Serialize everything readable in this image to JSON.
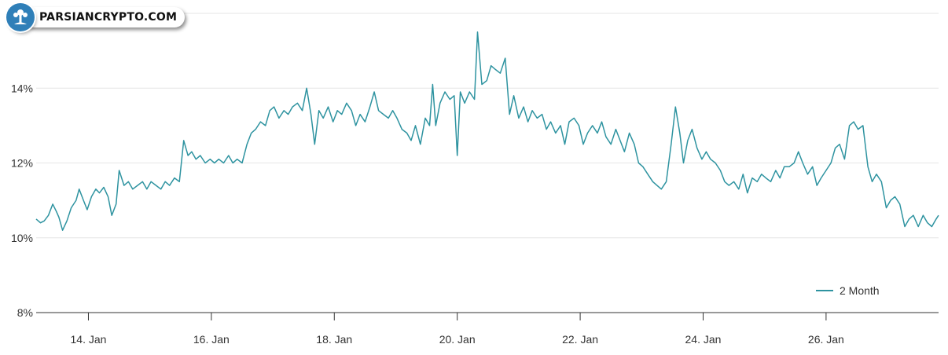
{
  "watermark": {
    "text": "PARSIANCRYPTO.COM",
    "icon": "tree-logo-icon"
  },
  "chart_data": {
    "type": "line",
    "title": "",
    "xlabel": "",
    "ylabel": "",
    "ylim": [
      8,
      16
    ],
    "yticks": [
      "8%",
      "10%",
      "12%",
      "14%"
    ],
    "xlim": [
      13.15,
      27.83
    ],
    "xticks": [
      {
        "x": 14,
        "label": "14. Jan"
      },
      {
        "x": 16,
        "label": "16. Jan"
      },
      {
        "x": 18,
        "label": "18. Jan"
      },
      {
        "x": 20,
        "label": "20. Jan"
      },
      {
        "x": 22,
        "label": "22. Jan"
      },
      {
        "x": 24,
        "label": "24. Jan"
      },
      {
        "x": 26,
        "label": "26. Jan"
      }
    ],
    "grid": true,
    "legend": "bottom-right",
    "color": "#2e93a0",
    "series": [
      {
        "name": "2 Month",
        "points": [
          [
            13.15,
            10.5
          ],
          [
            13.22,
            10.4
          ],
          [
            13.28,
            10.45
          ],
          [
            13.35,
            10.6
          ],
          [
            13.42,
            10.9
          ],
          [
            13.48,
            10.7
          ],
          [
            13.52,
            10.55
          ],
          [
            13.58,
            10.2
          ],
          [
            13.65,
            10.45
          ],
          [
            13.72,
            10.8
          ],
          [
            13.8,
            11.0
          ],
          [
            13.85,
            11.3
          ],
          [
            13.92,
            11.0
          ],
          [
            13.98,
            10.75
          ],
          [
            14.05,
            11.1
          ],
          [
            14.12,
            11.3
          ],
          [
            14.18,
            11.2
          ],
          [
            14.25,
            11.35
          ],
          [
            14.32,
            11.1
          ],
          [
            14.38,
            10.6
          ],
          [
            14.45,
            10.9
          ],
          [
            14.5,
            11.8
          ],
          [
            14.58,
            11.4
          ],
          [
            14.65,
            11.5
          ],
          [
            14.72,
            11.3
          ],
          [
            14.8,
            11.4
          ],
          [
            14.88,
            11.5
          ],
          [
            14.95,
            11.3
          ],
          [
            15.02,
            11.5
          ],
          [
            15.1,
            11.4
          ],
          [
            15.18,
            11.3
          ],
          [
            15.25,
            11.5
          ],
          [
            15.32,
            11.4
          ],
          [
            15.4,
            11.6
          ],
          [
            15.48,
            11.5
          ],
          [
            15.55,
            12.6
          ],
          [
            15.62,
            12.2
          ],
          [
            15.68,
            12.3
          ],
          [
            15.75,
            12.1
          ],
          [
            15.82,
            12.2
          ],
          [
            15.9,
            12.0
          ],
          [
            15.98,
            12.1
          ],
          [
            16.05,
            12.0
          ],
          [
            16.12,
            12.1
          ],
          [
            16.2,
            12.0
          ],
          [
            16.28,
            12.2
          ],
          [
            16.35,
            12.0
          ],
          [
            16.42,
            12.1
          ],
          [
            16.5,
            12.0
          ],
          [
            16.58,
            12.5
          ],
          [
            16.65,
            12.8
          ],
          [
            16.72,
            12.9
          ],
          [
            16.8,
            13.1
          ],
          [
            16.88,
            13.0
          ],
          [
            16.95,
            13.4
          ],
          [
            17.02,
            13.5
          ],
          [
            17.1,
            13.2
          ],
          [
            17.18,
            13.4
          ],
          [
            17.25,
            13.3
          ],
          [
            17.32,
            13.5
          ],
          [
            17.4,
            13.6
          ],
          [
            17.48,
            13.4
          ],
          [
            17.55,
            14.0
          ],
          [
            17.62,
            13.3
          ],
          [
            17.68,
            12.5
          ],
          [
            17.75,
            13.4
          ],
          [
            17.82,
            13.2
          ],
          [
            17.9,
            13.5
          ],
          [
            17.98,
            13.1
          ],
          [
            18.05,
            13.4
          ],
          [
            18.12,
            13.3
          ],
          [
            18.2,
            13.6
          ],
          [
            18.28,
            13.4
          ],
          [
            18.35,
            13.0
          ],
          [
            18.42,
            13.3
          ],
          [
            18.5,
            13.1
          ],
          [
            18.58,
            13.5
          ],
          [
            18.65,
            13.9
          ],
          [
            18.72,
            13.4
          ],
          [
            18.8,
            13.3
          ],
          [
            18.88,
            13.2
          ],
          [
            18.95,
            13.4
          ],
          [
            19.02,
            13.2
          ],
          [
            19.1,
            12.9
          ],
          [
            19.18,
            12.8
          ],
          [
            19.25,
            12.6
          ],
          [
            19.32,
            13.0
          ],
          [
            19.4,
            12.5
          ],
          [
            19.48,
            13.2
          ],
          [
            19.55,
            13.0
          ],
          [
            19.6,
            14.1
          ],
          [
            19.65,
            13.0
          ],
          [
            19.72,
            13.6
          ],
          [
            19.8,
            13.9
          ],
          [
            19.88,
            13.7
          ],
          [
            19.95,
            13.8
          ],
          [
            20.0,
            12.2
          ],
          [
            20.05,
            13.9
          ],
          [
            20.12,
            13.6
          ],
          [
            20.2,
            13.9
          ],
          [
            20.28,
            13.7
          ],
          [
            20.33,
            15.5
          ],
          [
            20.4,
            14.1
          ],
          [
            20.48,
            14.2
          ],
          [
            20.55,
            14.6
          ],
          [
            20.62,
            14.5
          ],
          [
            20.7,
            14.4
          ],
          [
            20.78,
            14.8
          ],
          [
            20.85,
            13.3
          ],
          [
            20.92,
            13.8
          ],
          [
            21.0,
            13.2
          ],
          [
            21.08,
            13.5
          ],
          [
            21.15,
            13.1
          ],
          [
            21.22,
            13.4
          ],
          [
            21.3,
            13.2
          ],
          [
            21.38,
            13.3
          ],
          [
            21.45,
            12.9
          ],
          [
            21.52,
            13.1
          ],
          [
            21.6,
            12.8
          ],
          [
            21.68,
            13.0
          ],
          [
            21.75,
            12.5
          ],
          [
            21.82,
            13.1
          ],
          [
            21.9,
            13.2
          ],
          [
            21.98,
            13.0
          ],
          [
            22.05,
            12.5
          ],
          [
            22.12,
            12.8
          ],
          [
            22.2,
            13.0
          ],
          [
            22.28,
            12.8
          ],
          [
            22.35,
            13.1
          ],
          [
            22.42,
            12.7
          ],
          [
            22.5,
            12.5
          ],
          [
            22.58,
            12.9
          ],
          [
            22.65,
            12.6
          ],
          [
            22.72,
            12.3
          ],
          [
            22.8,
            12.8
          ],
          [
            22.88,
            12.5
          ],
          [
            22.95,
            12.0
          ],
          [
            23.02,
            11.9
          ],
          [
            23.1,
            11.7
          ],
          [
            23.18,
            11.5
          ],
          [
            23.25,
            11.4
          ],
          [
            23.32,
            11.3
          ],
          [
            23.4,
            11.5
          ],
          [
            23.48,
            12.5
          ],
          [
            23.55,
            13.5
          ],
          [
            23.62,
            12.8
          ],
          [
            23.68,
            12.0
          ],
          [
            23.75,
            12.6
          ],
          [
            23.82,
            12.9
          ],
          [
            23.9,
            12.4
          ],
          [
            23.98,
            12.1
          ],
          [
            24.05,
            12.3
          ],
          [
            24.12,
            12.1
          ],
          [
            24.2,
            12.0
          ],
          [
            24.28,
            11.8
          ],
          [
            24.35,
            11.5
          ],
          [
            24.42,
            11.4
          ],
          [
            24.5,
            11.5
          ],
          [
            24.58,
            11.3
          ],
          [
            24.65,
            11.7
          ],
          [
            24.72,
            11.2
          ],
          [
            24.8,
            11.6
          ],
          [
            24.88,
            11.5
          ],
          [
            24.95,
            11.7
          ],
          [
            25.02,
            11.6
          ],
          [
            25.1,
            11.5
          ],
          [
            25.18,
            11.8
          ],
          [
            25.25,
            11.6
          ],
          [
            25.32,
            11.9
          ],
          [
            25.4,
            11.9
          ],
          [
            25.48,
            12.0
          ],
          [
            25.55,
            12.3
          ],
          [
            25.62,
            12.0
          ],
          [
            25.7,
            11.7
          ],
          [
            25.78,
            11.9
          ],
          [
            25.85,
            11.4
          ],
          [
            25.92,
            11.6
          ],
          [
            26.0,
            11.8
          ],
          [
            26.08,
            12.0
          ],
          [
            26.15,
            12.4
          ],
          [
            26.22,
            12.5
          ],
          [
            26.3,
            12.1
          ],
          [
            26.38,
            13.0
          ],
          [
            26.45,
            13.1
          ],
          [
            26.52,
            12.9
          ],
          [
            26.6,
            13.0
          ],
          [
            26.68,
            11.9
          ],
          [
            26.75,
            11.5
          ],
          [
            26.82,
            11.7
          ],
          [
            26.9,
            11.5
          ],
          [
            26.98,
            10.8
          ],
          [
            27.05,
            11.0
          ],
          [
            27.12,
            11.1
          ],
          [
            27.2,
            10.9
          ],
          [
            27.28,
            10.3
          ],
          [
            27.35,
            10.5
          ],
          [
            27.42,
            10.6
          ],
          [
            27.5,
            10.3
          ],
          [
            27.58,
            10.6
          ],
          [
            27.65,
            10.4
          ],
          [
            27.72,
            10.3
          ],
          [
            27.79,
            10.5
          ],
          [
            27.83,
            10.6
          ]
        ]
      }
    ]
  }
}
